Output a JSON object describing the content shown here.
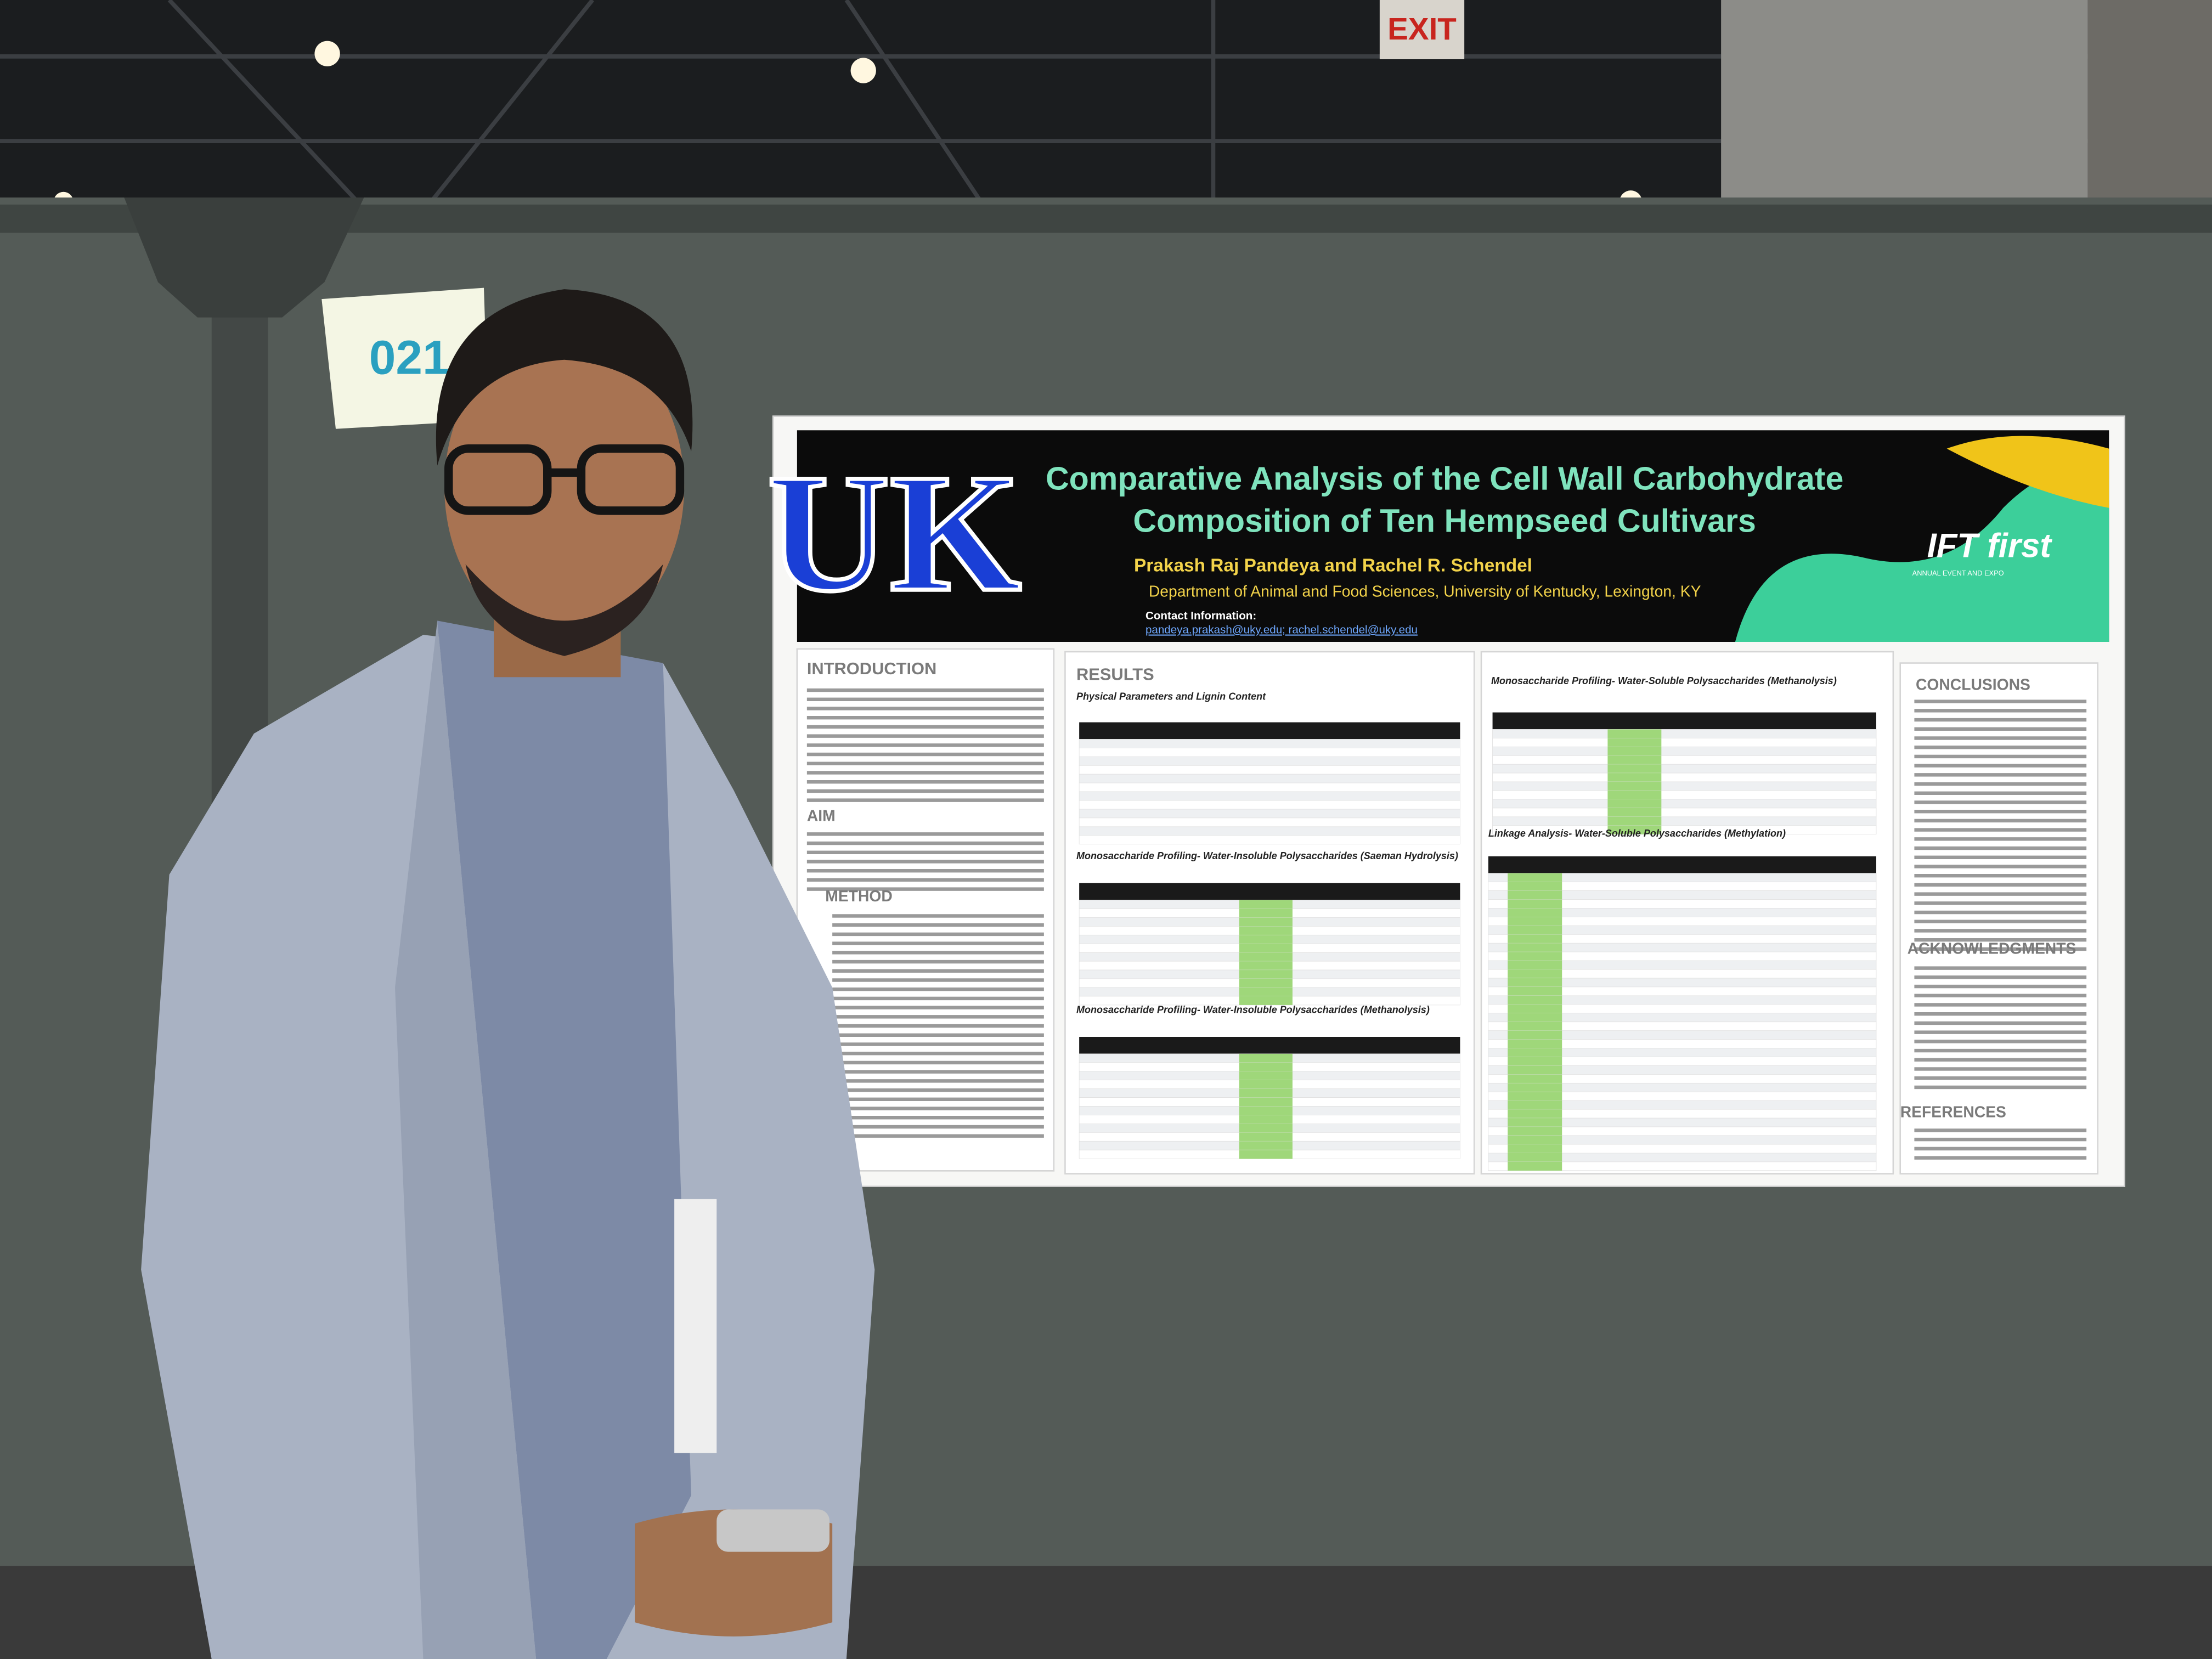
{
  "scene": {
    "exit_sign": "EXIT",
    "booth_number": "021"
  },
  "poster": {
    "logo": "UK",
    "title_lines": [
      "Comparative Analysis of the Cell Wall Carbohydrate",
      "Composition of Ten Hempseed Cultivars"
    ],
    "authors": "Prakash Raj Pandeya and Rachel R. Schendel",
    "affiliation": "Department of Animal and Food Sciences, University of Kentucky, Lexington, KY",
    "contact_label": "Contact Information:",
    "contact_emails": "pandeya.prakash@uky.edu; rachel.schendel@uky.edu",
    "sponsor_logo": "IFT first",
    "sponsor_tagline": "ANNUAL EVENT AND EXPO",
    "sections": [
      "INTRODUCTION",
      "AIM",
      "METHOD",
      "RESULTS",
      "CONCLUSIONS",
      "ACKNOWLEDGMENTS",
      "REFERENCES"
    ],
    "subheadings": [
      "Physical Parameters and Lignin Content",
      "Monosaccharide Profiling- Water-Insoluble Polysaccharides (Saeman Hydrolysis)",
      "Monosaccharide Profiling- Water-Insoluble Polysaccharides (Methanolysis)",
      "Monosaccharide Profiling- Water-Soluble Polysaccharides (Methanolysis)",
      "Linkage Analysis- Water-Soluble Polysaccharides (Methylation)"
    ]
  }
}
